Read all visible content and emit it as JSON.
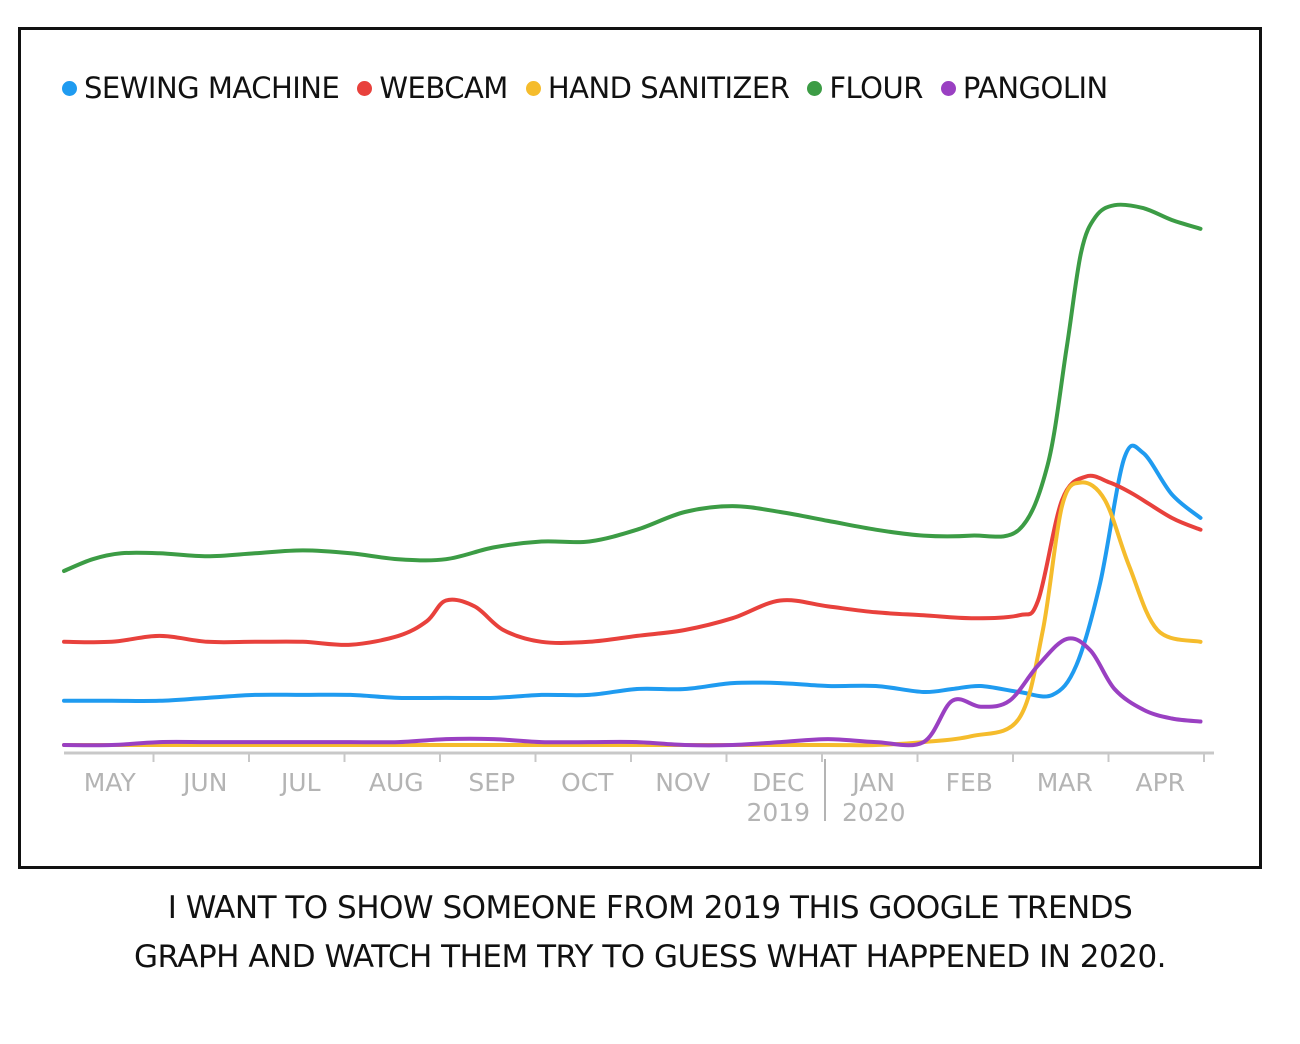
{
  "chart_data": {
    "type": "line",
    "title": "",
    "xlabel": "",
    "ylabel": "",
    "x_ticks": [
      {
        "t": 0.0,
        "label": "MAY"
      },
      {
        "t": 1.0,
        "label": "JUN"
      },
      {
        "t": 2.0,
        "label": "JUL"
      },
      {
        "t": 3.0,
        "label": "AUG"
      },
      {
        "t": 4.0,
        "label": "SEP"
      },
      {
        "t": 5.0,
        "label": "OCT"
      },
      {
        "t": 6.0,
        "label": "NOV"
      },
      {
        "t": 7.0,
        "label": "DEC",
        "sublabel": "2019"
      },
      {
        "t": 8.0,
        "label": "JAN",
        "sublabel": "2020"
      },
      {
        "t": 9.0,
        "label": "FEB"
      },
      {
        "t": 10.0,
        "label": "MAR"
      },
      {
        "t": 11.0,
        "label": "APR"
      }
    ],
    "ylim": [
      0,
      100
    ],
    "grid": false,
    "legend": "top",
    "series": [
      {
        "name": "SEWING MACHINE",
        "color": "#1f9bf0",
        "x": [
          0,
          0.5,
          1,
          1.5,
          2,
          2.5,
          3,
          3.5,
          4,
          4.5,
          5,
          5.5,
          6,
          6.5,
          7,
          7.5,
          8,
          8.5,
          9,
          9.3,
          9.6,
          10,
          10.35,
          10.6,
          10.85,
          11.1,
          11.3,
          11.6,
          11.9
        ],
        "y": [
          8,
          8,
          8,
          8.5,
          9,
          9,
          9,
          8.5,
          8.5,
          8.5,
          9,
          9,
          10,
          10,
          11,
          11,
          10.5,
          10.5,
          9.5,
          10,
          10.5,
          9.5,
          9,
          14,
          28,
          49,
          50,
          43,
          39
        ]
      },
      {
        "name": "WEBCAM",
        "color": "#e8413c",
        "x": [
          0,
          0.5,
          1,
          1.5,
          2,
          2.5,
          3,
          3.5,
          3.8,
          4,
          4.3,
          4.6,
          5,
          5.5,
          6,
          6.5,
          7,
          7.5,
          8,
          8.5,
          9,
          9.5,
          10,
          10.2,
          10.45,
          10.7,
          10.95,
          11.2,
          11.6,
          11.9
        ],
        "y": [
          18,
          18,
          19,
          18,
          18,
          18,
          17.5,
          19,
          21.5,
          25,
          24,
          20,
          18,
          18,
          19,
          20,
          22,
          25,
          24,
          23,
          22.5,
          22,
          22.5,
          25,
          42,
          46,
          45,
          43,
          39,
          37
        ]
      },
      {
        "name": "HAND SANITIZER",
        "color": "#f5bc2c",
        "x": [
          0,
          1,
          2,
          3,
          4,
          5,
          6,
          7,
          8,
          8.5,
          9,
          9.5,
          10,
          10.25,
          10.45,
          10.65,
          10.9,
          11.15,
          11.45,
          11.9
        ],
        "y": [
          0.5,
          0.5,
          0.5,
          0.5,
          0.5,
          0.5,
          0.5,
          0.5,
          0.5,
          0.5,
          1,
          2,
          5,
          20,
          41,
          45,
          42,
          31,
          20,
          18
        ]
      },
      {
        "name": "FLOUR",
        "color": "#3c9c45",
        "x": [
          0,
          0.3,
          0.6,
          1,
          1.5,
          2,
          2.5,
          3,
          3.5,
          4,
          4.5,
          5,
          5.5,
          6,
          6.5,
          7,
          7.5,
          8,
          8.5,
          9,
          9.5,
          10,
          10.3,
          10.5,
          10.65,
          10.8,
          11,
          11.3,
          11.6,
          11.9
        ],
        "y": [
          30,
          32,
          33,
          33,
          32.5,
          33,
          33.5,
          33,
          32,
          32,
          34,
          35,
          35,
          37,
          40,
          41,
          40,
          38.5,
          37,
          36,
          36,
          37,
          48,
          68,
          84,
          90,
          92,
          91.5,
          89.5,
          88
        ]
      },
      {
        "name": "PANGOLIN",
        "color": "#9a40c2",
        "x": [
          0,
          0.5,
          1,
          1.5,
          2,
          2.5,
          3,
          3.5,
          4,
          4.5,
          5,
          5.5,
          6,
          6.5,
          7,
          7.5,
          8,
          8.5,
          9,
          9.3,
          9.6,
          9.9,
          10.2,
          10.5,
          10.75,
          11,
          11.3,
          11.6,
          11.9
        ],
        "y": [
          0.5,
          0.5,
          1,
          1,
          1,
          1,
          1,
          1,
          1.5,
          1.5,
          1,
          1,
          1,
          0.5,
          0.5,
          1,
          1.5,
          1,
          1,
          8,
          7,
          8,
          14,
          18.5,
          16.5,
          10,
          6.5,
          5,
          4.5
        ]
      }
    ]
  },
  "caption": {
    "line1": "I WANT TO SHOW SOMEONE FROM 2019 THIS GOOGLE TRENDS",
    "line2": "GRAPH AND WATCH THEM TRY TO GUESS WHAT HAPPENED IN 2020."
  }
}
